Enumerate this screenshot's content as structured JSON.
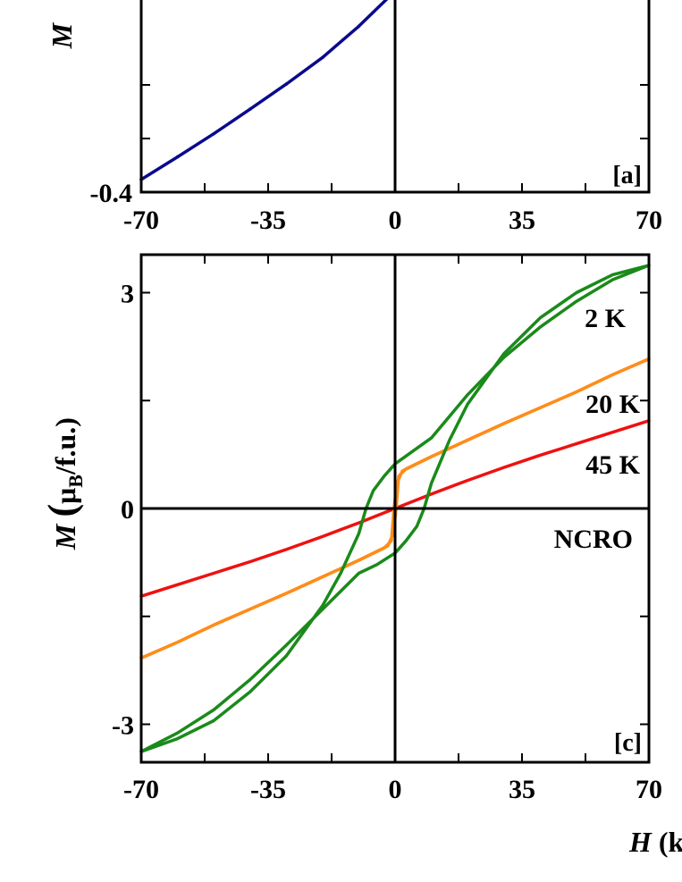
{
  "chart_data": [
    {
      "type": "line",
      "panel_label": "[a]",
      "ylabel": "M",
      "xlim": [
        -70,
        70
      ],
      "ylim": [
        -0.4,
        0.4
      ],
      "x_ticks": [
        "-70",
        "-35",
        "0",
        "35",
        "70"
      ],
      "y_ticks": [
        "-0.4"
      ],
      "series": [
        {
          "color": "#0a0a8c",
          "points": [
            [
              -70,
              -0.375
            ],
            [
              -60,
              -0.33
            ],
            [
              -50,
              -0.284
            ],
            [
              -40,
              -0.235
            ],
            [
              -30,
              -0.185
            ],
            [
              -20,
              -0.132
            ],
            [
              -10,
              -0.07
            ],
            [
              0,
              -0.0
            ]
          ]
        }
      ]
    },
    {
      "type": "line",
      "panel_label": "[c]",
      "ylabel": "M (μB/f.u.)",
      "ylabel_parts": {
        "var": "M",
        "open": "(",
        "mu": "μ",
        "sub": "B",
        "unit": "/f.u.)"
      },
      "xlabel": "H (k",
      "xlabel_parts": {
        "var": "H",
        "unit": " (k"
      },
      "xlim": [
        -70,
        70
      ],
      "ylim": [
        -3.5,
        3.5
      ],
      "x_ticks": [
        "-70",
        "-35",
        "0",
        "35",
        "70"
      ],
      "y_ticks": [
        "3",
        "0",
        "-3"
      ],
      "sample_label": "NCRO",
      "series": [
        {
          "name": "2 K",
          "color": "#1a8a1a",
          "branch_descending": [
            [
              70,
              3.38
            ],
            [
              60,
              3.18
            ],
            [
              50,
              2.88
            ],
            [
              40,
              2.52
            ],
            [
              30,
              2.1
            ],
            [
              20,
              1.58
            ],
            [
              10,
              0.98
            ],
            [
              5,
              0.8
            ],
            [
              0,
              0.62
            ],
            [
              -3,
              0.45
            ],
            [
              -6,
              0.25
            ],
            [
              -8,
              0.0
            ],
            [
              -10,
              -0.35
            ],
            [
              -15,
              -0.9
            ],
            [
              -20,
              -1.35
            ],
            [
              -30,
              -2.05
            ],
            [
              -40,
              -2.55
            ],
            [
              -50,
              -2.95
            ],
            [
              -60,
              -3.2
            ],
            [
              -70,
              -3.38
            ]
          ],
          "branch_ascending": [
            [
              -70,
              -3.38
            ],
            [
              -60,
              -3.12
            ],
            [
              -50,
              -2.8
            ],
            [
              -40,
              -2.38
            ],
            [
              -30,
              -1.9
            ],
            [
              -20,
              -1.4
            ],
            [
              -10,
              -0.9
            ],
            [
              -5,
              -0.78
            ],
            [
              0,
              -0.62
            ],
            [
              3,
              -0.45
            ],
            [
              6,
              -0.25
            ],
            [
              8,
              0.0
            ],
            [
              10,
              0.35
            ],
            [
              15,
              0.95
            ],
            [
              20,
              1.45
            ],
            [
              30,
              2.15
            ],
            [
              40,
              2.65
            ],
            [
              50,
              3.0
            ],
            [
              60,
              3.25
            ],
            [
              70,
              3.38
            ]
          ]
        },
        {
          "name": "20 K",
          "color": "#ff8c1a",
          "branch_descending": [
            [
              70,
              2.08
            ],
            [
              60,
              1.86
            ],
            [
              50,
              1.62
            ],
            [
              40,
              1.4
            ],
            [
              30,
              1.18
            ],
            [
              20,
              0.95
            ],
            [
              10,
              0.72
            ],
            [
              3,
              0.55
            ],
            [
              1,
              0.45
            ],
            [
              0.3,
              0.0
            ],
            [
              -0.5,
              -0.35
            ],
            [
              -2,
              -0.52
            ],
            [
              -10,
              -0.72
            ],
            [
              -20,
              -0.95
            ],
            [
              -30,
              -1.18
            ],
            [
              -40,
              -1.4
            ],
            [
              -50,
              -1.62
            ],
            [
              -60,
              -1.86
            ],
            [
              -70,
              -2.08
            ]
          ],
          "branch_ascending": [
            [
              -70,
              -2.08
            ],
            [
              -60,
              -1.86
            ],
            [
              -50,
              -1.62
            ],
            [
              -40,
              -1.4
            ],
            [
              -30,
              -1.18
            ],
            [
              -20,
              -0.95
            ],
            [
              -10,
              -0.72
            ],
            [
              -3,
              -0.55
            ],
            [
              -1,
              -0.45
            ],
            [
              -0.3,
              0.0
            ],
            [
              0.5,
              0.35
            ],
            [
              2,
              0.52
            ],
            [
              10,
              0.72
            ],
            [
              20,
              0.95
            ],
            [
              30,
              1.18
            ],
            [
              40,
              1.4
            ],
            [
              50,
              1.62
            ],
            [
              60,
              1.86
            ],
            [
              70,
              2.08
            ]
          ]
        },
        {
          "name": "45 K",
          "color": "#ee1111",
          "branch_descending": [
            [
              70,
              1.22
            ],
            [
              60,
              1.06
            ],
            [
              50,
              0.9
            ],
            [
              40,
              0.74
            ],
            [
              30,
              0.57
            ],
            [
              20,
              0.39
            ],
            [
              10,
              0.2
            ],
            [
              0,
              0.0
            ],
            [
              -10,
              -0.2
            ],
            [
              -20,
              -0.39
            ],
            [
              -30,
              -0.57
            ],
            [
              -40,
              -0.74
            ],
            [
              -50,
              -0.9
            ],
            [
              -60,
              -1.06
            ],
            [
              -70,
              -1.22
            ]
          ]
        }
      ]
    }
  ]
}
